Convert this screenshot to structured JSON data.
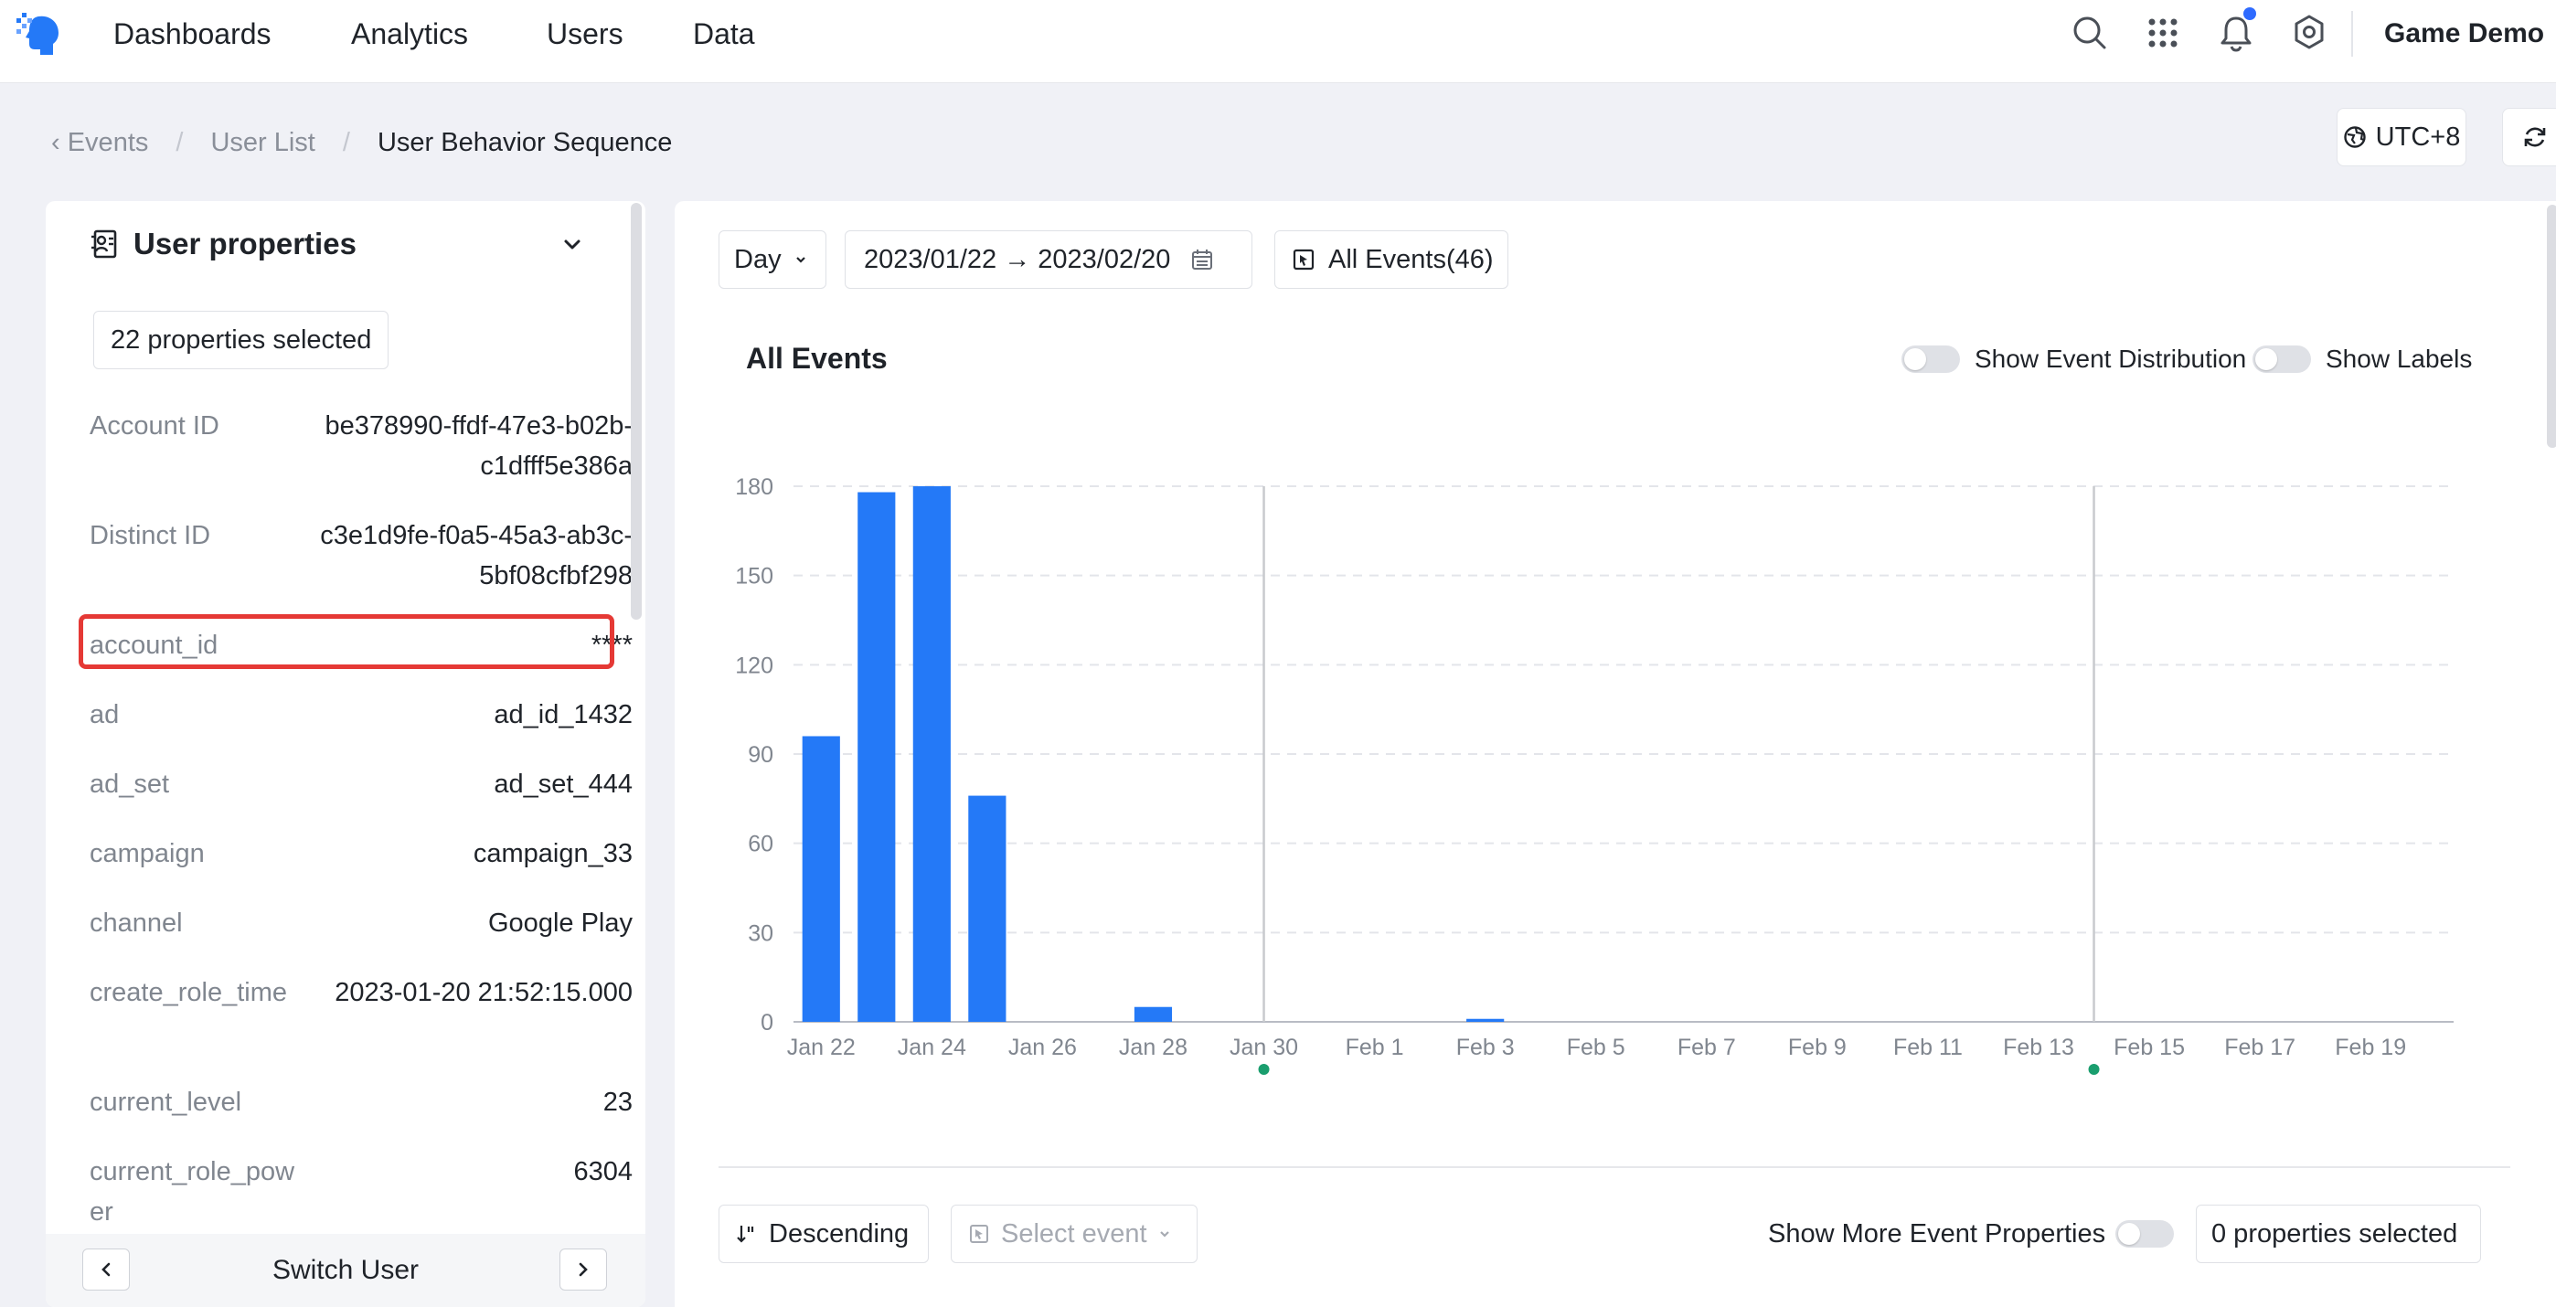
{
  "nav": {
    "items": [
      "Dashboards",
      "Analytics",
      "Users",
      "Data"
    ],
    "project": "Game Demo"
  },
  "breadcrumb": {
    "items": [
      "Events",
      "User List"
    ],
    "current": "User Behavior Sequence"
  },
  "timezone": "UTC+8",
  "user_panel": {
    "title": "User properties",
    "selected_label": "22 properties selected",
    "properties": [
      {
        "key": "Account ID",
        "value": "be378990-ffdf-47e3-b02b-c1dfff5e386a"
      },
      {
        "key": "Distinct ID",
        "value": "c3e1d9fe-f0a5-45a3-ab3c-5bf08cfbf298"
      },
      {
        "key": "account_id",
        "value": "****"
      },
      {
        "key": "ad",
        "value": "ad_id_1432"
      },
      {
        "key": "ad_set",
        "value": "ad_set_444"
      },
      {
        "key": "campaign",
        "value": "campaign_33"
      },
      {
        "key": "channel",
        "value": "Google Play"
      },
      {
        "key": "create_role_time",
        "value": "2023-01-20 21:52:15.000"
      },
      {
        "key": "current_level",
        "value": "23"
      },
      {
        "key": "current_role_power",
        "value": "6304"
      }
    ],
    "switch_label": "Switch User"
  },
  "toolbar": {
    "granularity": "Day",
    "date_range": "2023/01/22 → 2023/02/20",
    "events_filter": "All Events(46)"
  },
  "chart_header": {
    "title": "All Events",
    "toggle_distribution": "Show Event Distribution",
    "toggle_labels": "Show Labels"
  },
  "chart_data": {
    "type": "bar",
    "title": "All Events",
    "color": "#2479f7",
    "x_dates": [
      "Jan 22",
      "Jan 23",
      "Jan 24",
      "Jan 25",
      "Jan 26",
      "Jan 27",
      "Jan 28",
      "Jan 29",
      "Jan 30",
      "Jan 31",
      "Feb 1",
      "Feb 2",
      "Feb 3",
      "Feb 4",
      "Feb 5",
      "Feb 6",
      "Feb 7",
      "Feb 8",
      "Feb 9",
      "Feb 10",
      "Feb 11",
      "Feb 12",
      "Feb 13",
      "Feb 14",
      "Feb 15",
      "Feb 16",
      "Feb 17",
      "Feb 18",
      "Feb 19",
      "Feb 20"
    ],
    "values": [
      96,
      178,
      180,
      76,
      0,
      0,
      5,
      0,
      0,
      0,
      0,
      0,
      1,
      0,
      0,
      0,
      0,
      0,
      0,
      0,
      0,
      0,
      0,
      0,
      0,
      0,
      0,
      0,
      0,
      0
    ],
    "tick_labels": [
      "Jan 22",
      "Jan 24",
      "Jan 26",
      "Jan 28",
      "Jan 30",
      "Feb 1",
      "Feb 3",
      "Feb 5",
      "Feb 7",
      "Feb 9",
      "Feb 11",
      "Feb 13",
      "Feb 15",
      "Feb 17",
      "Feb 19"
    ],
    "y_ticks": [
      0,
      30,
      60,
      90,
      120,
      150,
      180
    ],
    "ylim": [
      0,
      180
    ],
    "markers": [
      "Jan 30",
      "Feb 14"
    ],
    "marker_color": "#1a9e6e",
    "grid": "dashed horizontal"
  },
  "bottom": {
    "sort_label": "Descending",
    "select_event_placeholder": "Select event",
    "more_props_label": "Show More Event Properties",
    "props_selected_label": "0 properties selected"
  },
  "colors": {
    "accent": "#2479f7",
    "highlight": "#e53935"
  }
}
